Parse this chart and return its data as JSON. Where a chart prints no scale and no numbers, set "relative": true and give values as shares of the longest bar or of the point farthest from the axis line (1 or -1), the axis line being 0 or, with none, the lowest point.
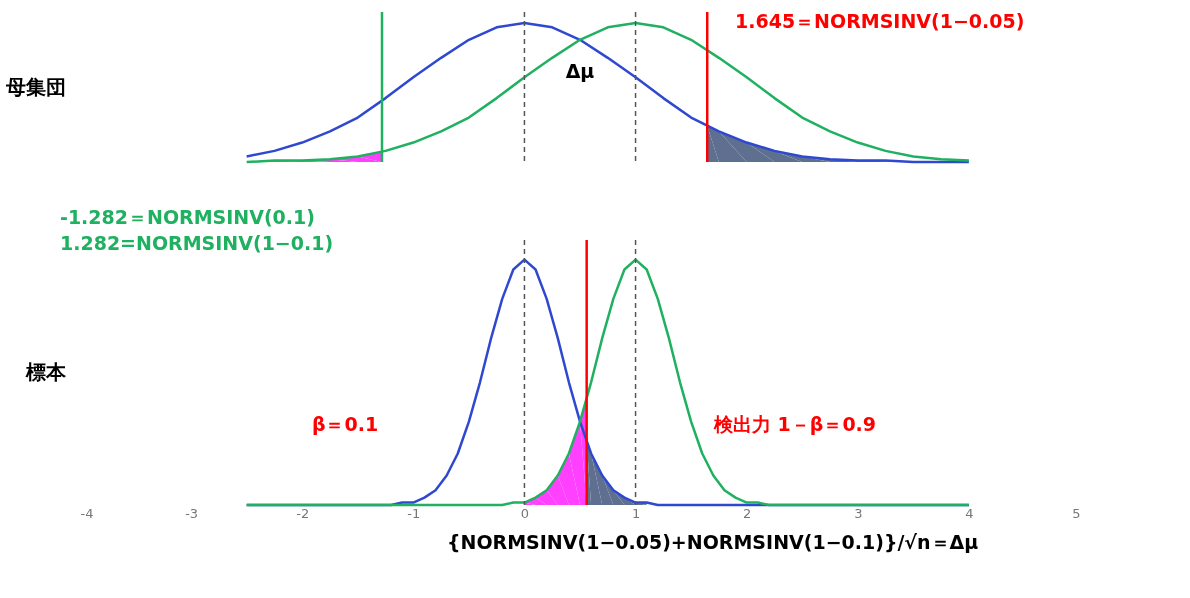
{
  "chart_data": [
    {
      "type": "line",
      "relative": true,
      "ylabel": "母集団",
      "xlim": [
        -4,
        5
      ],
      "xticks": [
        -4,
        -3,
        -2,
        -1,
        0,
        1,
        2,
        3,
        4,
        5
      ],
      "tick_labels": false,
      "x": [
        -2.5,
        -2.25,
        -2,
        -1.75,
        -1.5,
        -1.25,
        -1,
        -0.75,
        -0.5,
        -0.25,
        0,
        0.25,
        0.5,
        0.75,
        1,
        1.25,
        1.5,
        1.75,
        2,
        2.25,
        2.5,
        2.75,
        3,
        3.25,
        3.5,
        3.75,
        4
      ],
      "series": [
        {
          "type": "area",
          "color": "#ff40ff",
          "x": [
            -2.5,
            -2.25,
            -2,
            -1.75,
            -1.5,
            -1.282
          ],
          "values": [
            0,
            0.01,
            0.01,
            0.02,
            0.04,
            0.07
          ]
        },
        {
          "type": "area",
          "color": "#5f6f8f",
          "x": [
            1.645,
            1.75,
            2,
            2.25,
            2.5,
            2.75,
            3,
            3.5,
            4
          ],
          "values": [
            0.26,
            0.22,
            0.14,
            0.08,
            0.04,
            0.02,
            0.01,
            0,
            0
          ]
        },
        {
          "color": "#2f48d0",
          "values": [
            0.04,
            0.08,
            0.14,
            0.22,
            0.32,
            0.46,
            0.61,
            0.75,
            0.88,
            0.97,
            1,
            0.97,
            0.88,
            0.75,
            0.61,
            0.46,
            0.32,
            0.22,
            0.14,
            0.08,
            0.04,
            0.02,
            0.01,
            0.01,
            0,
            0,
            0
          ]
        },
        {
          "color": "#1fb060",
          "values": [
            0,
            0.01,
            0.01,
            0.02,
            0.04,
            0.08,
            0.14,
            0.22,
            0.32,
            0.46,
            0.61,
            0.75,
            0.88,
            0.97,
            1,
            0.97,
            0.88,
            0.75,
            0.61,
            0.46,
            0.32,
            0.22,
            0.14,
            0.08,
            0.04,
            0.02,
            0.01
          ]
        }
      ],
      "ref_lines": [
        {
          "axis": "x",
          "value": 0,
          "color": "#555555",
          "line_style": "dashed"
        },
        {
          "axis": "x",
          "value": 1,
          "color": "#555555",
          "line_style": "dashed"
        },
        {
          "axis": "x",
          "value": -1.282,
          "color": "#1fb060"
        },
        {
          "axis": "x",
          "value": 1.645,
          "color": "#ff0000"
        }
      ],
      "annotations": [
        "1.645＝NORMSINV(1−0.05)",
        "Δμ"
      ]
    },
    {
      "type": "line",
      "relative": true,
      "ylabel": "標本",
      "xlim": [
        -4,
        5
      ],
      "xticks": [
        -4,
        -3,
        -2,
        -1,
        0,
        1,
        2,
        3,
        4,
        5
      ],
      "tick_labels": "x",
      "x": [
        -2.5,
        -1.5,
        -1.2,
        -1.1,
        -1,
        -0.9,
        -0.8,
        -0.7,
        -0.6,
        -0.5,
        -0.4,
        -0.3,
        -0.2,
        -0.1,
        0,
        0.1,
        0.2,
        0.3,
        0.4,
        0.5,
        0.6,
        0.7,
        0.8,
        0.9,
        1,
        1.1,
        1.2,
        1.3,
        1.4,
        1.5,
        1.6,
        1.7,
        1.8,
        1.9,
        2,
        2.1,
        2.2,
        2.5,
        4
      ],
      "series": [
        {
          "type": "area",
          "color": "#ff40ff",
          "x": [
            0,
            0.1,
            0.2,
            0.3,
            0.4,
            0.5,
            0.56
          ],
          "values": [
            0.01,
            0.03,
            0.06,
            0.12,
            0.21,
            0.34,
            0.44
          ]
        },
        {
          "type": "area",
          "color": "#5f6f8f",
          "x": [
            0.56,
            0.6,
            0.7,
            0.8,
            0.9,
            1,
            1.1
          ],
          "values": [
            0.26,
            0.21,
            0.12,
            0.06,
            0.03,
            0.01,
            0.01
          ]
        },
        {
          "color": "#2f48d0",
          "values": [
            0,
            0,
            0,
            0.01,
            0.01,
            0.03,
            0.06,
            0.12,
            0.21,
            0.34,
            0.5,
            0.68,
            0.84,
            0.96,
            1,
            0.96,
            0.84,
            0.68,
            0.5,
            0.34,
            0.21,
            0.12,
            0.06,
            0.03,
            0.01,
            0.01,
            0,
            0,
            0,
            0,
            0,
            0,
            0,
            0,
            0,
            0,
            0,
            0,
            0
          ]
        },
        {
          "color": "#1fb060",
          "values": [
            0,
            0,
            0,
            0,
            0,
            0,
            0,
            0,
            0,
            0,
            0,
            0,
            0,
            0.01,
            0.01,
            0.03,
            0.06,
            0.12,
            0.21,
            0.34,
            0.5,
            0.68,
            0.84,
            0.96,
            1,
            0.96,
            0.84,
            0.68,
            0.5,
            0.34,
            0.21,
            0.12,
            0.06,
            0.03,
            0.01,
            0.01,
            0,
            0,
            0
          ]
        }
      ],
      "ref_lines": [
        {
          "axis": "x",
          "value": 0,
          "color": "#555555",
          "line_style": "dashed"
        },
        {
          "axis": "x",
          "value": 1,
          "color": "#555555",
          "line_style": "dashed"
        },
        {
          "axis": "x",
          "value": 0.56,
          "color": "#ff0000"
        }
      ],
      "annotations": [
        "-1.282＝NORMSINV(0.1)",
        "1.282=NORMSINV(1−0.1)",
        "β＝0.1",
        "検出力 1－β＝0.9",
        "{NORMSINV(1−0.05)+NORMSINV(1−0.1)}/√n＝Δμ"
      ]
    }
  ]
}
